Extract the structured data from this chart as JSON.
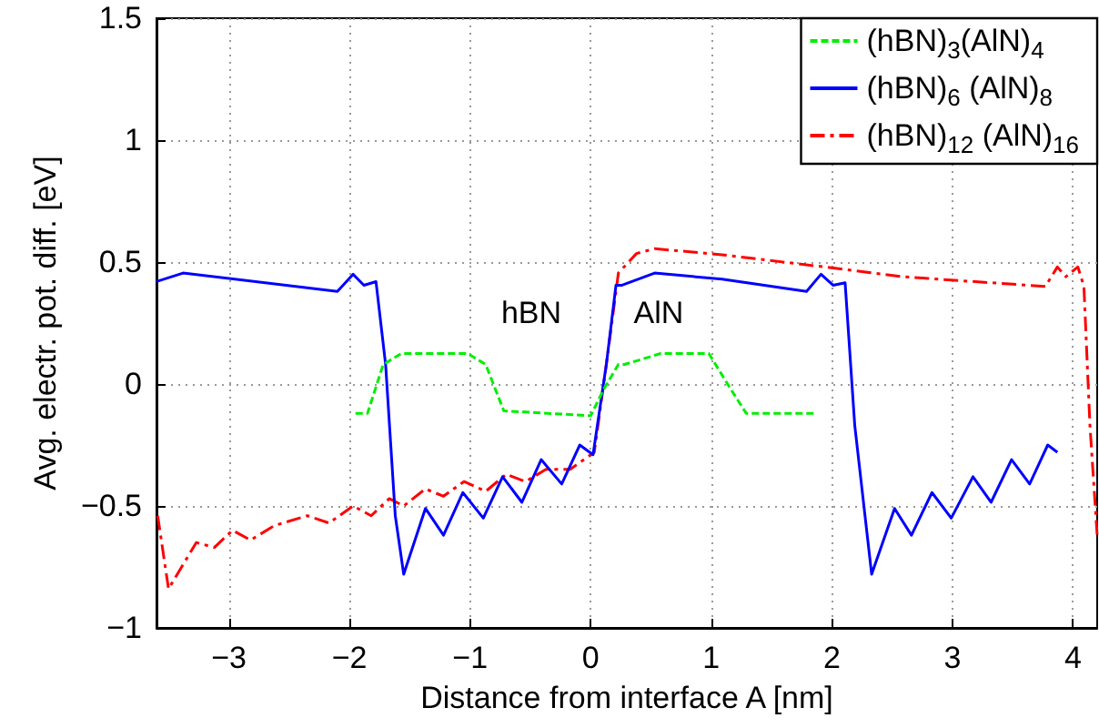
{
  "chart_data": {
    "type": "line",
    "xlabel": "Distance from interface A [nm]",
    "ylabel": "Avg. electr. pot. diff. [eV]",
    "xlim": [
      -3.6,
      4.2
    ],
    "xticks": [
      -3,
      -2,
      -1,
      0,
      1,
      2,
      3,
      4
    ],
    "ylim": [
      -1,
      1.5
    ],
    "yticks": [
      -1,
      -0.5,
      0,
      0.5,
      1,
      1.5
    ],
    "grid": true,
    "legend": "top right",
    "marker": "none",
    "annotations": [
      "hBN",
      "AlN"
    ],
    "series": [
      {
        "name": "(hBN)$_{3}$(AlN)$_{4}$",
        "color": "#00ee00",
        "line_style": "dashed",
        "x": [
          -1.95,
          -1.85,
          -1.72,
          -1.57,
          -1.02,
          -0.87,
          -0.72,
          0.0,
          0.11,
          0.23,
          0.28,
          0.58,
          0.98,
          1.16,
          1.29,
          1.87
        ],
        "values": [
          -0.12,
          -0.12,
          0.08,
          0.125,
          0.125,
          0.08,
          -0.11,
          -0.13,
          -0.02,
          0.08,
          0.08,
          0.125,
          0.125,
          -0.02,
          -0.12,
          -0.12
        ]
      },
      {
        "name": "(hBN)$_{6}$ (AlN)$_{8}$",
        "color": "#0000ff",
        "line_style": "solid",
        "x": [
          -3.6,
          -3.38,
          -2.1,
          -1.97,
          -1.88,
          -1.78,
          -1.7,
          -1.62,
          -1.55,
          -1.37,
          -1.22,
          -1.06,
          -0.89,
          -0.73,
          -0.57,
          -0.41,
          -0.24,
          -0.09,
          0.02,
          0.13,
          0.21,
          0.26,
          0.53,
          1.09,
          1.79,
          1.91,
          2.01,
          2.11,
          2.19,
          2.33,
          2.52,
          2.66,
          2.83,
          2.99,
          3.17,
          3.32,
          3.49,
          3.64,
          3.79,
          3.87
        ],
        "values": [
          0.42,
          0.455,
          0.38,
          0.45,
          0.405,
          0.42,
          0.08,
          -0.54,
          -0.78,
          -0.51,
          -0.62,
          -0.445,
          -0.55,
          -0.38,
          -0.485,
          -0.31,
          -0.41,
          -0.25,
          -0.29,
          0.08,
          0.405,
          0.405,
          0.455,
          0.43,
          0.38,
          0.45,
          0.405,
          0.415,
          -0.17,
          -0.78,
          -0.51,
          -0.62,
          -0.445,
          -0.55,
          -0.38,
          -0.485,
          -0.31,
          -0.41,
          -0.25,
          -0.28
        ]
      },
      {
        "name": "(hBN)$_{12}$ (AlN)$_{16}$",
        "color": "#ff0000",
        "line_style": "dashdot",
        "x": [
          -3.59,
          -3.5,
          -3.27,
          -3.12,
          -2.97,
          -2.82,
          -2.62,
          -2.35,
          -2.17,
          -1.97,
          -1.82,
          -1.67,
          -1.55,
          -1.37,
          -1.22,
          -1.05,
          -0.87,
          -0.7,
          -0.54,
          -0.37,
          -0.17,
          0.03,
          0.13,
          0.23,
          0.38,
          0.53,
          1.09,
          1.94,
          2.59,
          3.77,
          3.87,
          3.94,
          4.04,
          4.09,
          4.14,
          4.2
        ],
        "values": [
          -0.54,
          -0.84,
          -0.65,
          -0.67,
          -0.6,
          -0.64,
          -0.58,
          -0.54,
          -0.57,
          -0.5,
          -0.54,
          -0.47,
          -0.5,
          -0.43,
          -0.46,
          -0.4,
          -0.44,
          -0.37,
          -0.4,
          -0.35,
          -0.35,
          -0.28,
          0.08,
          0.455,
          0.535,
          0.555,
          0.53,
          0.48,
          0.44,
          0.4,
          0.48,
          0.44,
          0.48,
          0.4,
          -0.17,
          -0.62
        ]
      }
    ]
  }
}
